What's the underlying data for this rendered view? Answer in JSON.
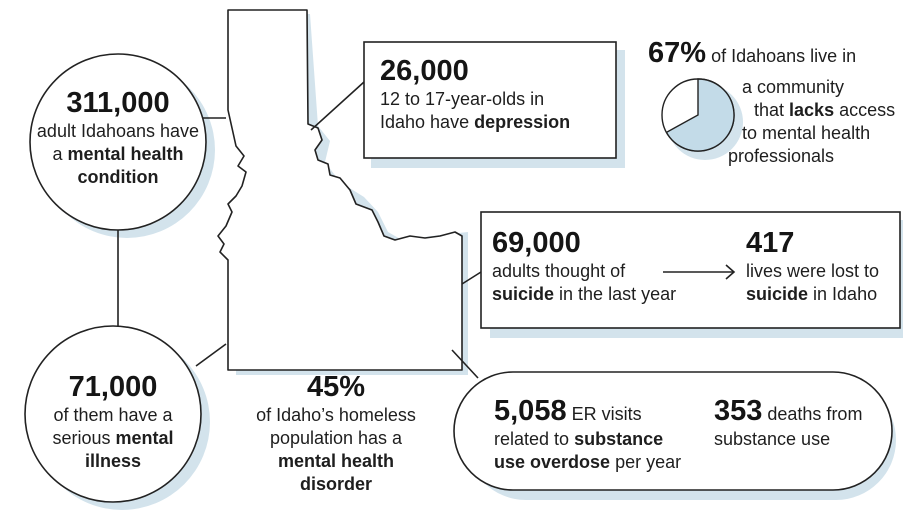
{
  "colors": {
    "shadow": "#d3e3ec",
    "outline": "#222222",
    "pie_slice": "#c3dbe8"
  },
  "stat_adults": {
    "number": "311,000",
    "line1": "adult Idahoans have",
    "line2_pre": "a ",
    "line2_bold": "mental health",
    "line3_bold": "condition"
  },
  "stat_youth": {
    "number": "26,000",
    "line1": "12 to 17-year-olds in",
    "line2_pre": "Idaho have ",
    "line2_bold": "depression"
  },
  "stat_access": {
    "number": "67%",
    "line1": "of Idahoans live in",
    "line2": "a community",
    "line3_pre": "that ",
    "line3_bold": "lacks",
    "line3_post": " access",
    "line4": "to mental health",
    "line5": "professionals",
    "pie_fraction": 0.67
  },
  "stat_suicide_thoughts": {
    "number": "69,000",
    "line1": "adults thought of",
    "line2_bold": "suicide",
    "line2_post": " in the last year"
  },
  "stat_suicide_deaths": {
    "number": "417",
    "line1": "lives were lost to",
    "line2_bold": "suicide",
    "line2_post": " in Idaho"
  },
  "stat_serious": {
    "number": "71,000",
    "line1": "of them have a",
    "line2_pre": "serious ",
    "line2_bold": "mental",
    "line3_bold": "illness"
  },
  "stat_homeless": {
    "number": "45%",
    "line1": "of Idaho’s homeless",
    "line2": "population has a",
    "line3_bold": "mental health",
    "line4_bold": "disorder"
  },
  "stat_er": {
    "number": "5,058",
    "number_suffix": " ER visits",
    "line1_pre": "related to ",
    "line1_bold": "substance",
    "line2_bold": "use overdose",
    "line2_post": " per year"
  },
  "stat_deaths": {
    "number": "353",
    "number_suffix": " deaths from",
    "line1": "substance use"
  }
}
